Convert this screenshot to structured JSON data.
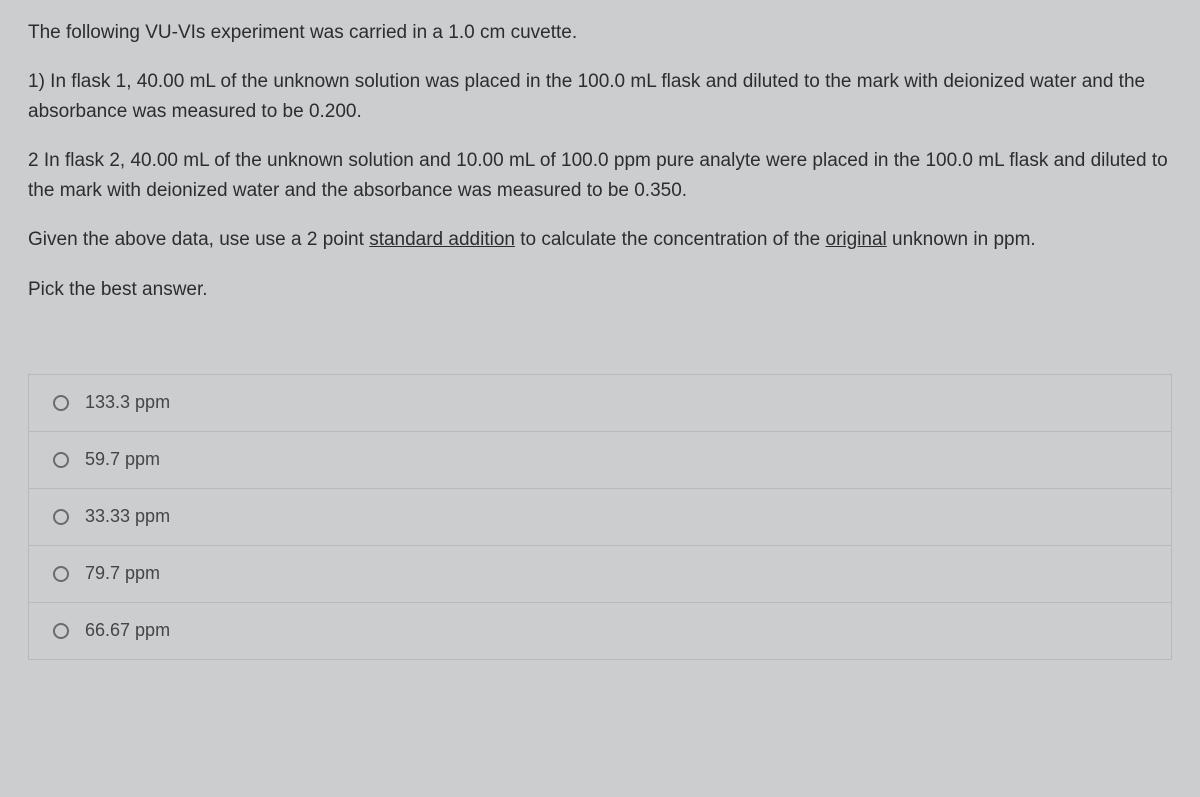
{
  "question": {
    "p1": "The following VU-VIs experiment was carried in a 1.0 cm cuvette.",
    "p2": "1) In flask 1, 40.00 mL of the unknown solution was placed in the 100.0 mL flask and diluted to the mark with deionized water and the absorbance was measured to be 0.200.",
    "p3": "2 In flask 2, 40.00 mL of the unknown solution and 10.00 mL of 100.0 ppm pure analyte were placed in the 100.0 mL flask and diluted to the mark with deionized water and the absorbance was measured to be 0.350.",
    "p4_pre": "Given the above  data, use  use a 2 point ",
    "p4_u1": "standard addition",
    "p4_mid": " to calculate the concentration of the ",
    "p4_u2": "original",
    "p4_post": " unknown in ppm.",
    "p5": "Pick the best answer."
  },
  "options": [
    {
      "label": "133.3 ppm"
    },
    {
      "label": "59.7 ppm"
    },
    {
      "label": "33.33 ppm"
    },
    {
      "label": "79.7 ppm"
    },
    {
      "label": "66.67 ppm"
    }
  ],
  "colors": {
    "background": "#cccdce",
    "text": "#2c2d2e",
    "option_text": "#444546",
    "border": "#b8b9ba",
    "radio_border": "#6a6b6c"
  }
}
